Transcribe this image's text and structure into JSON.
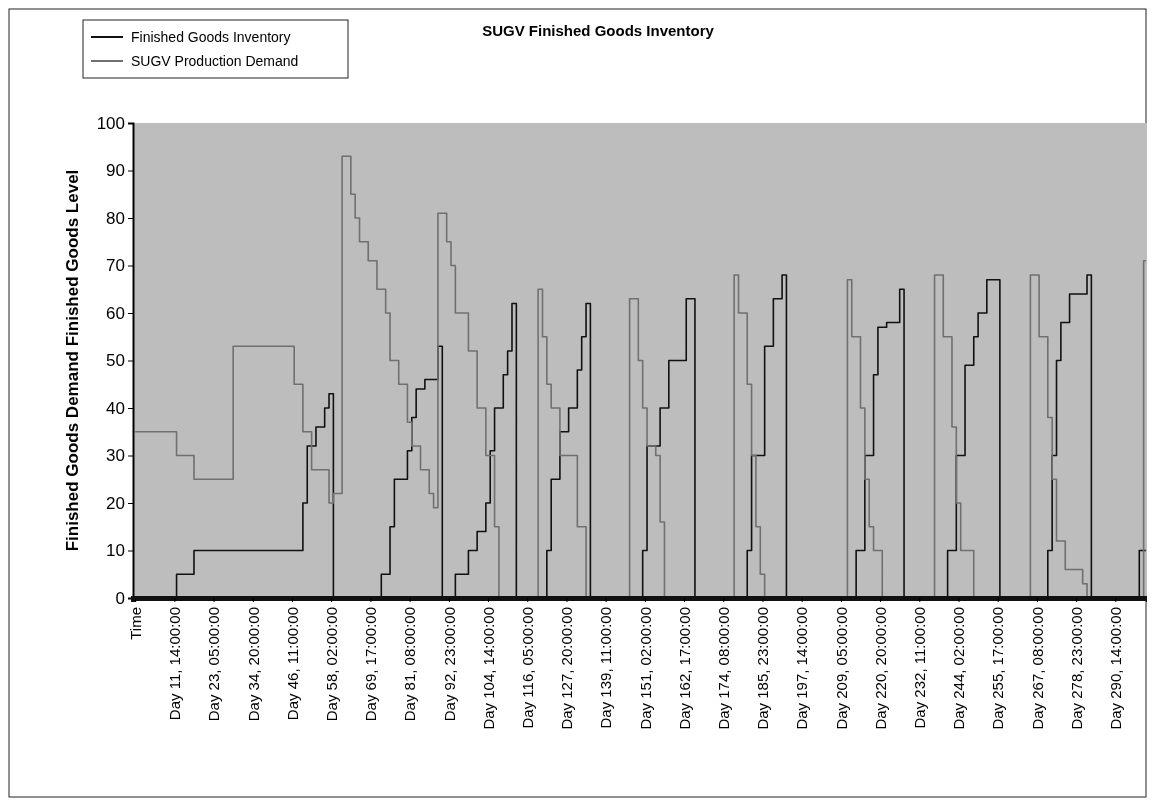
{
  "chart_data": {
    "type": "step",
    "title": "SUGV Finished Goods Inventory",
    "ylabel": "Finished Goods Demand   Finished Goods Level",
    "categories": [
      "Time",
      null,
      null,
      null,
      null,
      null,
      null,
      null,
      null,
      "Day 11, 14:00:00",
      null,
      null,
      null,
      null,
      null,
      null,
      null,
      null,
      "Day 23, 05:00:00",
      null,
      null,
      null,
      null,
      null,
      null,
      null,
      null,
      "Day 34, 20:00:00",
      null,
      null,
      null,
      null,
      null,
      null,
      null,
      null,
      "Day 46, 11:00:00",
      null,
      null,
      null,
      null,
      null,
      null,
      null,
      null,
      "Day 58, 02:00:00",
      null,
      null,
      null,
      null,
      null,
      null,
      null,
      null,
      "Day 69, 17:00:00",
      null,
      null,
      null,
      null,
      null,
      null,
      null,
      null,
      "Day 81, 08:00:00",
      null,
      null,
      null,
      null,
      null,
      null,
      null,
      null,
      "Day 92, 23:00:00",
      null,
      null,
      null,
      null,
      null,
      null,
      null,
      null,
      "Day 104, 14:00:00",
      null,
      null,
      null,
      null,
      null,
      null,
      null,
      null,
      "Day 116, 05:00:00",
      null,
      null,
      null,
      null,
      null,
      null,
      null,
      null,
      "Day 127, 20:00:00",
      null,
      null,
      null,
      null,
      null,
      null,
      null,
      null,
      "Day 139, 11:00:00",
      null,
      null,
      null,
      null,
      null,
      null,
      null,
      null,
      "Day 151, 02:00:00",
      null,
      null,
      null,
      null,
      null,
      null,
      null,
      null,
      "Day 162, 17:00:00",
      null,
      null,
      null,
      null,
      null,
      null,
      null,
      null,
      "Day 174, 08:00:00",
      null,
      null,
      null,
      null,
      null,
      null,
      null,
      null,
      "Day 185, 23:00:00",
      null,
      null,
      null,
      null,
      null,
      null,
      null,
      null,
      "Day 197, 14:00:00",
      null,
      null,
      null,
      null,
      null,
      null,
      null,
      null,
      "Day 209, 05:00:00",
      null,
      null,
      null,
      null,
      null,
      null,
      null,
      null,
      "Day 220, 20:00:00",
      null,
      null,
      null,
      null,
      null,
      null,
      null,
      null,
      "Day 232, 11:00:00",
      null,
      null,
      null,
      null,
      null,
      null,
      null,
      null,
      "Day 244, 02:00:00",
      null,
      null,
      null,
      null,
      null,
      null,
      null,
      null,
      "Day 255, 17:00:00",
      null,
      null,
      null,
      null,
      null,
      null,
      null,
      null,
      "Day 267, 08:00:00",
      null,
      null,
      null,
      null,
      null,
      null,
      null,
      null,
      "Day 278, 23:00:00",
      null,
      null,
      null,
      null,
      null,
      null,
      null,
      null,
      "Day 290, 14:00:00",
      null,
      null,
      null,
      null,
      null,
      null,
      null
    ],
    "ylim": [
      0,
      100
    ],
    "yticks": [
      0,
      10,
      20,
      30,
      40,
      50,
      60,
      70,
      80,
      90,
      100
    ],
    "legend": "top left",
    "series": [
      {
        "name": "Finished Goods Inventory",
        "color": "#111111",
        "values": [
          0,
          0,
          0,
          0,
          0,
          0,
          0,
          0,
          0,
          0,
          5,
          5,
          5,
          5,
          10,
          10,
          10,
          10,
          10,
          10,
          10,
          10,
          10,
          10,
          10,
          10,
          10,
          10,
          10,
          10,
          10,
          10,
          10,
          10,
          10,
          10,
          10,
          10,
          10,
          20,
          32,
          32,
          36,
          36,
          40,
          43,
          0,
          0,
          0,
          0,
          0,
          0,
          0,
          0,
          0,
          0,
          0,
          5,
          5,
          15,
          25,
          25,
          25,
          31,
          38,
          44,
          44,
          46,
          46,
          46,
          53,
          0,
          0,
          0,
          5,
          5,
          5,
          10,
          10,
          14,
          14,
          20,
          31,
          40,
          40,
          47,
          52,
          62,
          0,
          0,
          0,
          0,
          0,
          0,
          0,
          10,
          25,
          25,
          35,
          35,
          40,
          40,
          48,
          55,
          62,
          0,
          0,
          0,
          0,
          0,
          0,
          0,
          0,
          0,
          0,
          0,
          0,
          10,
          32,
          32,
          32,
          40,
          40,
          50,
          50,
          50,
          50,
          63,
          63,
          0,
          0,
          0,
          0,
          0,
          0,
          0,
          0,
          0,
          0,
          0,
          0,
          10,
          30,
          30,
          30,
          53,
          53,
          63,
          63,
          68,
          0,
          0,
          0,
          0,
          0,
          0,
          0,
          0,
          0,
          0,
          0,
          0,
          0,
          0,
          0,
          0,
          10,
          10,
          30,
          30,
          47,
          57,
          57,
          58,
          58,
          58,
          65,
          0,
          0,
          0,
          0,
          0,
          0,
          0,
          0,
          0,
          0,
          10,
          10,
          30,
          30,
          49,
          49,
          55,
          60,
          60,
          67,
          67,
          67,
          0,
          0,
          0,
          0,
          0,
          0,
          0,
          0,
          0,
          0,
          0,
          10,
          30,
          50,
          58,
          58,
          64,
          64,
          64,
          64,
          68,
          0,
          0,
          0,
          0,
          0,
          0,
          0,
          0,
          0,
          0,
          0,
          10,
          10
        ]
      },
      {
        "name": "SUGV Production Demand",
        "color": "#707070",
        "values": [
          35,
          35,
          35,
          35,
          35,
          35,
          35,
          35,
          35,
          35,
          30,
          30,
          30,
          30,
          25,
          25,
          25,
          25,
          25,
          25,
          25,
          25,
          25,
          53,
          53,
          53,
          53,
          53,
          53,
          53,
          53,
          53,
          53,
          53,
          53,
          53,
          53,
          45,
          45,
          35,
          35,
          27,
          27,
          27,
          27,
          20,
          22,
          22,
          93,
          93,
          85,
          80,
          75,
          75,
          71,
          71,
          65,
          65,
          60,
          50,
          50,
          45,
          45,
          37,
          32,
          32,
          27,
          27,
          22,
          19,
          81,
          81,
          75,
          70,
          60,
          60,
          60,
          52,
          52,
          40,
          40,
          30,
          30,
          15,
          0,
          0,
          0,
          0,
          0,
          0,
          0,
          0,
          0,
          65,
          55,
          45,
          40,
          40,
          30,
          30,
          30,
          30,
          15,
          15,
          0,
          0,
          0,
          0,
          0,
          0,
          0,
          0,
          0,
          0,
          63,
          63,
          50,
          40,
          32,
          32,
          30,
          16,
          0,
          0,
          0,
          0,
          0,
          0,
          0,
          0,
          0,
          0,
          0,
          0,
          0,
          0,
          0,
          0,
          68,
          60,
          60,
          45,
          30,
          15,
          5,
          0,
          0,
          0,
          0,
          0,
          0,
          0,
          0,
          0,
          0,
          0,
          0,
          0,
          0,
          0,
          0,
          0,
          0,
          0,
          67,
          55,
          55,
          40,
          25,
          15,
          10,
          10,
          0,
          0,
          0,
          0,
          0,
          0,
          0,
          0,
          0,
          0,
          0,
          0,
          68,
          68,
          55,
          55,
          36,
          20,
          10,
          10,
          10,
          0,
          0,
          0,
          0,
          0,
          0,
          0,
          0,
          0,
          0,
          0,
          0,
          0,
          68,
          68,
          55,
          55,
          38,
          25,
          12,
          12,
          6,
          6,
          6,
          6,
          3,
          0,
          0,
          0,
          0,
          0,
          0,
          0,
          0,
          0,
          0,
          0,
          0,
          0,
          71
        ]
      }
    ]
  }
}
